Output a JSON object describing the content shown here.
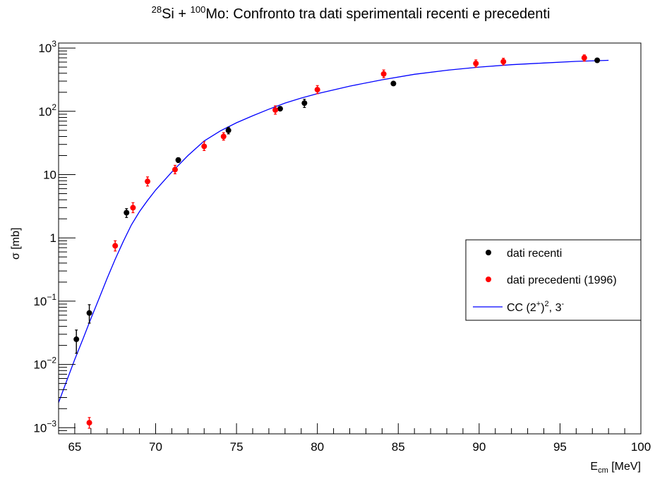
{
  "chart_data": {
    "type": "scatter",
    "title": {
      "a_sup": "28",
      "a_el": "Si + ",
      "b_sup": "100",
      "b_el": "Mo: Confronto tra dati sperimentali recenti e precedenti"
    },
    "xlabel": {
      "main": "E",
      "sub": "cm",
      "unit": " [MeV]"
    },
    "ylabel": "σ [mb]",
    "xlim": [
      64,
      100
    ],
    "ylim": [
      0.0008,
      1200
    ],
    "yscale": "log",
    "grid": false,
    "legend_position": "right-middle",
    "x_ticks": [
      "65",
      "70",
      "75",
      "80",
      "85",
      "90",
      "95",
      "100"
    ],
    "y_ticks": [
      {
        "v": 0.001,
        "base": "10",
        "exp": "−3"
      },
      {
        "v": 0.01,
        "base": "10",
        "exp": "−2"
      },
      {
        "v": 0.1,
        "base": "10",
        "exp": "−1"
      },
      {
        "v": 1,
        "base": "1",
        "exp": ""
      },
      {
        "v": 10,
        "base": "10",
        "exp": ""
      },
      {
        "v": 100,
        "base": "10",
        "exp": "2"
      },
      {
        "v": 1000,
        "base": "10",
        "exp": "3"
      }
    ],
    "series": [
      {
        "name": "dati recenti",
        "color": "#000000",
        "points": [
          {
            "x": 65.1,
            "y": 0.025,
            "lo": 0.015,
            "hi": 0.035
          },
          {
            "x": 65.9,
            "y": 0.065,
            "lo": 0.045,
            "hi": 0.088
          },
          {
            "x": 68.2,
            "y": 2.5,
            "lo": 2.1,
            "hi": 2.9
          },
          {
            "x": 71.4,
            "y": 17,
            "lo": 15.5,
            "hi": 18.5
          },
          {
            "x": 74.5,
            "y": 50,
            "lo": 44,
            "hi": 56
          },
          {
            "x": 77.7,
            "y": 110,
            "lo": 102,
            "hi": 118
          },
          {
            "x": 79.2,
            "y": 135,
            "lo": 115,
            "hi": 155
          },
          {
            "x": 84.7,
            "y": 275,
            "lo": 260,
            "hi": 290
          },
          {
            "x": 97.3,
            "y": 640,
            "lo": 610,
            "hi": 670
          }
        ]
      },
      {
        "name": "dati precedenti (1996)",
        "color": "#ff0000",
        "points": [
          {
            "x": 65.9,
            "y": 0.0012,
            "lo": 0.00098,
            "hi": 0.00145
          },
          {
            "x": 67.5,
            "y": 0.75,
            "lo": 0.62,
            "hi": 0.9
          },
          {
            "x": 68.6,
            "y": 3.0,
            "lo": 2.5,
            "hi": 3.6
          },
          {
            "x": 69.5,
            "y": 7.8,
            "lo": 6.6,
            "hi": 9.2
          },
          {
            "x": 71.2,
            "y": 12,
            "lo": 10.3,
            "hi": 14
          },
          {
            "x": 73.0,
            "y": 28,
            "lo": 24,
            "hi": 33
          },
          {
            "x": 74.2,
            "y": 40,
            "lo": 35,
            "hi": 46
          },
          {
            "x": 77.4,
            "y": 105,
            "lo": 90,
            "hi": 122
          },
          {
            "x": 80.0,
            "y": 220,
            "lo": 190,
            "hi": 255
          },
          {
            "x": 84.1,
            "y": 390,
            "lo": 340,
            "hi": 450
          },
          {
            "x": 89.8,
            "y": 570,
            "lo": 500,
            "hi": 650
          },
          {
            "x": 91.5,
            "y": 610,
            "lo": 540,
            "hi": 690
          },
          {
            "x": 96.5,
            "y": 700,
            "lo": 620,
            "hi": 780
          }
        ]
      },
      {
        "name": "CC (2",
        "name_sup1": "+",
        "name_mid": ")",
        "name_sup2": "2",
        "name_tail": ", 3",
        "name_sup3": "-",
        "color": "#0000ff",
        "line": [
          [
            64,
            0.0025
          ],
          [
            64.5,
            0.0055
          ],
          [
            65,
            0.012
          ],
          [
            65.5,
            0.025
          ],
          [
            66,
            0.053
          ],
          [
            66.5,
            0.11
          ],
          [
            67,
            0.23
          ],
          [
            67.5,
            0.46
          ],
          [
            68,
            0.88
          ],
          [
            68.5,
            1.6
          ],
          [
            69,
            2.6
          ],
          [
            69.5,
            3.9
          ],
          [
            70,
            5.7
          ],
          [
            71,
            11
          ],
          [
            72,
            20
          ],
          [
            73,
            34
          ],
          [
            74,
            49
          ],
          [
            75,
            66
          ],
          [
            76,
            85
          ],
          [
            77,
            108
          ],
          [
            78,
            135
          ],
          [
            79,
            162
          ],
          [
            80,
            190
          ],
          [
            82,
            250
          ],
          [
            84,
            315
          ],
          [
            86,
            385
          ],
          [
            88,
            445
          ],
          [
            90,
            500
          ],
          [
            92,
            545
          ],
          [
            94,
            580
          ],
          [
            96,
            615
          ],
          [
            98,
            640
          ]
        ]
      }
    ]
  }
}
